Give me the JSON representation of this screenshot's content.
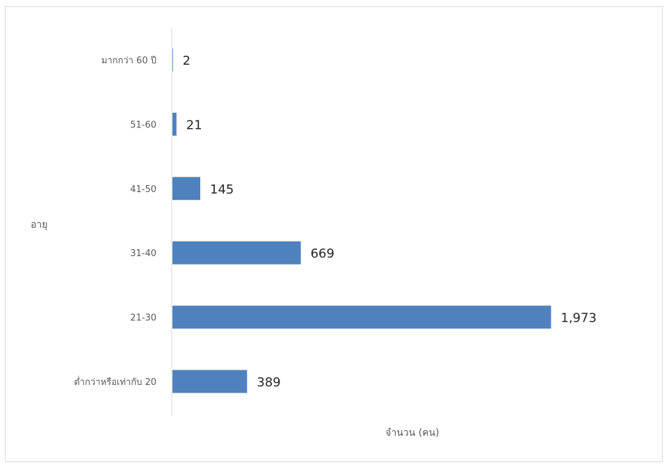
{
  "chart_data": {
    "type": "bar",
    "orientation": "horizontal",
    "categories": [
      "มากกว่า 60 ปี",
      "51-60",
      "41-50",
      "31-40",
      "21-30",
      "ต่ำกว่าหรือเท่ากับ 20"
    ],
    "values": [
      2,
      21,
      145,
      669,
      1973,
      389
    ],
    "value_labels": [
      "2",
      "21",
      "145",
      "669",
      "1,973",
      "389"
    ],
    "title": "",
    "xlabel": "จำนวน (คน)",
    "ylabel": "อายุ",
    "xlim": [
      0,
      2000
    ],
    "grid": false,
    "legend": false,
    "bar_color": "#4f81bd"
  }
}
